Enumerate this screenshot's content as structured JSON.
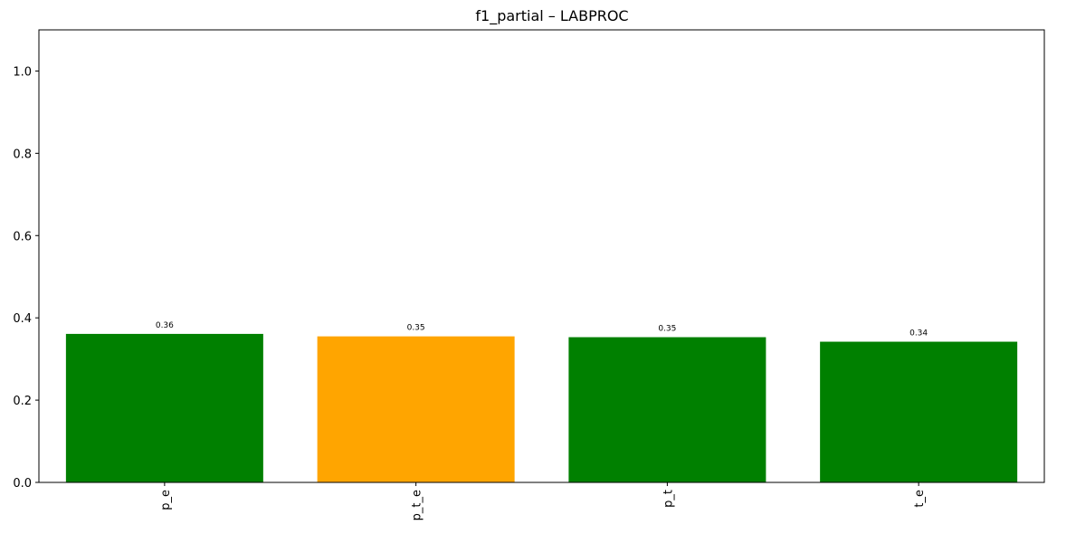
{
  "chart_data": {
    "type": "bar",
    "title": "f1_partial – LABPROC",
    "xlabel": "",
    "ylabel": "",
    "categories": [
      "p_e",
      "p_t_e",
      "p_t",
      "t_e"
    ],
    "values": [
      0.361,
      0.355,
      0.353,
      0.342
    ],
    "value_labels": [
      "0.36",
      "0.35",
      "0.35",
      "0.34"
    ],
    "bar_colors": [
      "#008000",
      "#FFA500",
      "#008000",
      "#008000"
    ],
    "ylim": [
      0,
      1.1
    ],
    "yticks": [
      0.0,
      0.2,
      0.4,
      0.6,
      0.8,
      1.0
    ],
    "ytick_labels": [
      "0.0",
      "0.2",
      "0.4",
      "0.6",
      "0.8",
      "1.0"
    ],
    "xtick_rotation": "vertical",
    "grid": false,
    "legend": "none"
  }
}
